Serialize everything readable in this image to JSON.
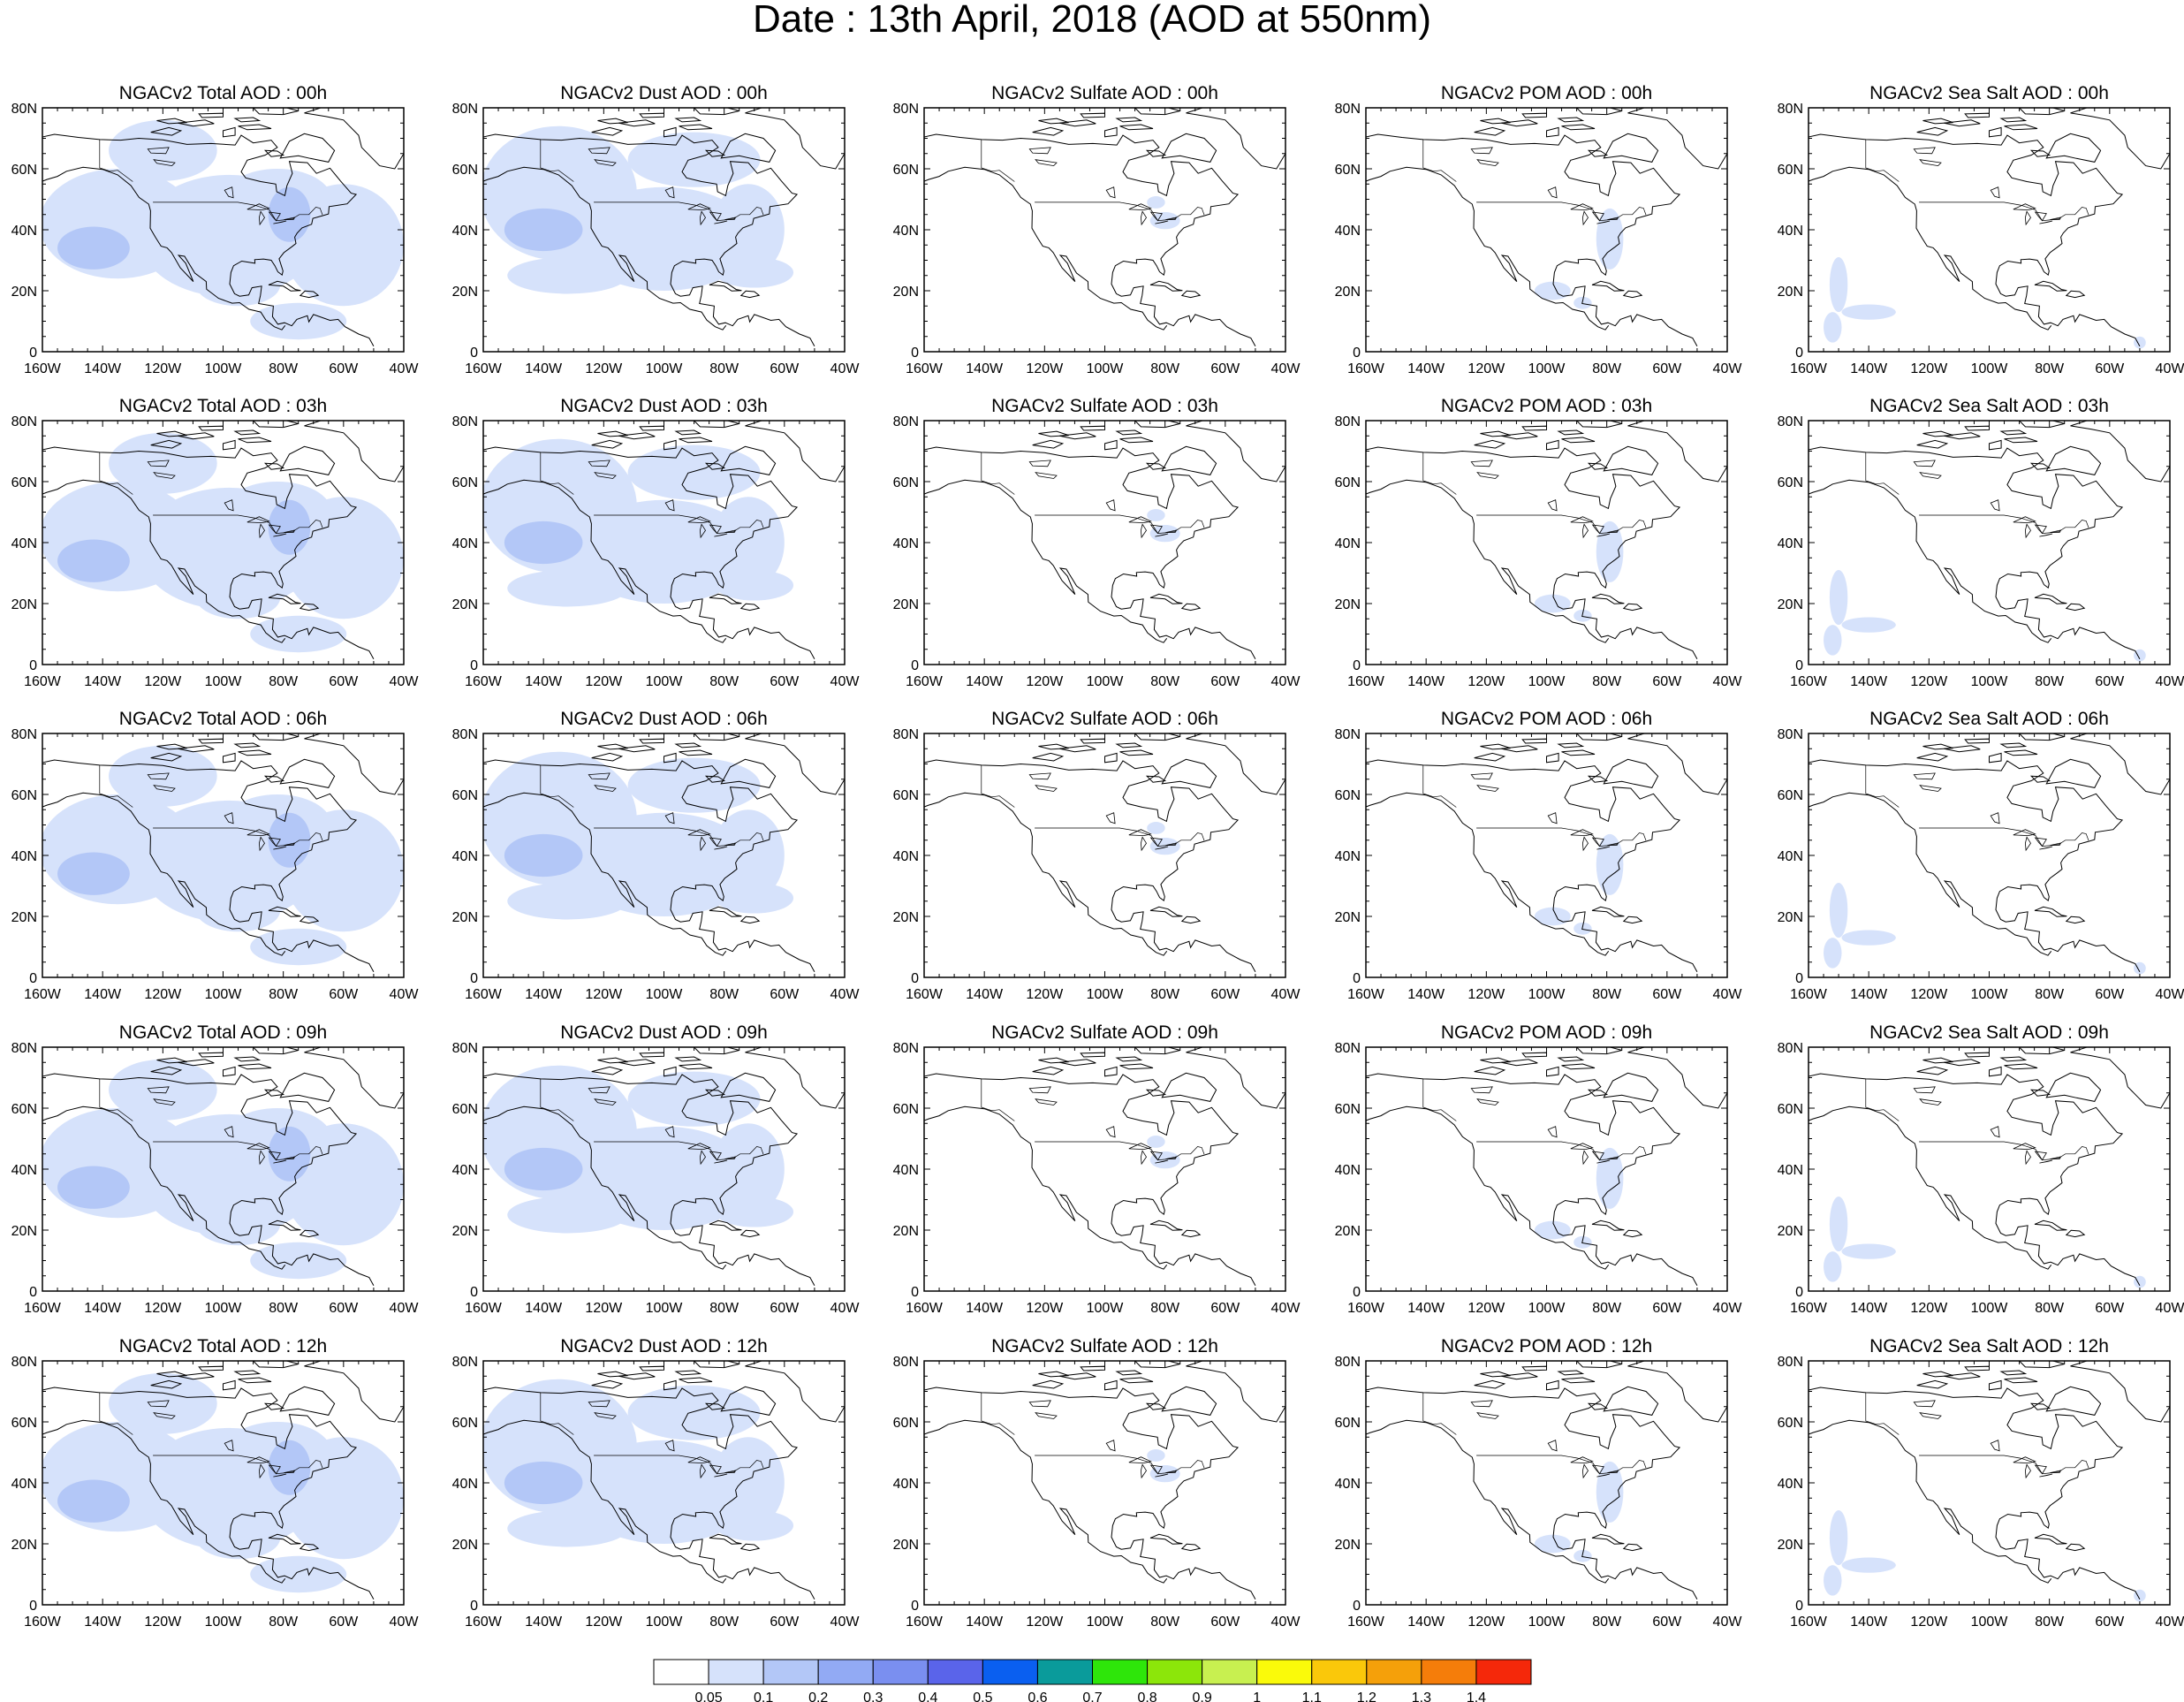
{
  "title": "Date : 13th April, 2018 (AOD at 550nm)",
  "axes": {
    "x_ticks": [
      "160W",
      "140W",
      "120W",
      "100W",
      "80W",
      "60W",
      "40W"
    ],
    "y_ticks": [
      "80N",
      "60N",
      "40N",
      "20N",
      "0"
    ]
  },
  "species": [
    "Total",
    "Dust",
    "Sulfate",
    "POM",
    "Sea Salt"
  ],
  "times": [
    "00h",
    "03h",
    "06h",
    "09h",
    "12h"
  ],
  "panels": [
    [
      "NGACv2 Total AOD : 00h",
      "NGACv2 Dust AOD : 00h",
      "NGACv2 Sulfate AOD : 00h",
      "NGACv2 POM AOD : 00h",
      "NGACv2 Sea Salt AOD : 00h"
    ],
    [
      "NGACv2 Total AOD : 03h",
      "NGACv2 Dust AOD : 03h",
      "NGACv2 Sulfate AOD : 03h",
      "NGACv2 POM AOD : 03h",
      "NGACv2 Sea Salt AOD : 03h"
    ],
    [
      "NGACv2 Total AOD : 06h",
      "NGACv2 Dust AOD : 06h",
      "NGACv2 Sulfate AOD : 06h",
      "NGACv2 POM AOD : 06h",
      "NGACv2 Sea Salt AOD : 06h"
    ],
    [
      "NGACv2 Total AOD : 09h",
      "NGACv2 Dust AOD : 09h",
      "NGACv2 Sulfate AOD : 09h",
      "NGACv2 POM AOD : 09h",
      "NGACv2 Sea Salt  AOD : 09h"
    ],
    [
      "NGACv2 Total AOD  : 12h",
      "NGACv2 Dust AOD : 12h",
      "NGACv2 Sulfate AOD : 12h",
      "NGACv2 POM  AOD : 12h",
      "NGACv2 Sea Salt  AOD : 12h"
    ]
  ],
  "colorbar": {
    "labels": [
      "0.05",
      "0.1",
      "0.2",
      "0.3",
      "0.4",
      "0.5",
      "0.6",
      "0.7",
      "0.8",
      "0.9",
      "1",
      "1.1",
      "1.2",
      "1.3",
      "1.4"
    ],
    "colors": [
      "#ffffff",
      "#d6e2fb",
      "#b3c7f7",
      "#92aaf4",
      "#7a8ff0",
      "#5a64ea",
      "#0a5ff0",
      "#0a9b9b",
      "#2ee60a",
      "#8ce60a",
      "#c8f050",
      "#fafa0a",
      "#fac80a",
      "#f5a00a",
      "#f57d0a",
      "#f5280a"
    ]
  },
  "map_colors": {
    "aod_0_05_0_1": "#d6e2fb",
    "aod_0_1_0_2": "#b3c7f7",
    "coastline": "#000000"
  }
}
